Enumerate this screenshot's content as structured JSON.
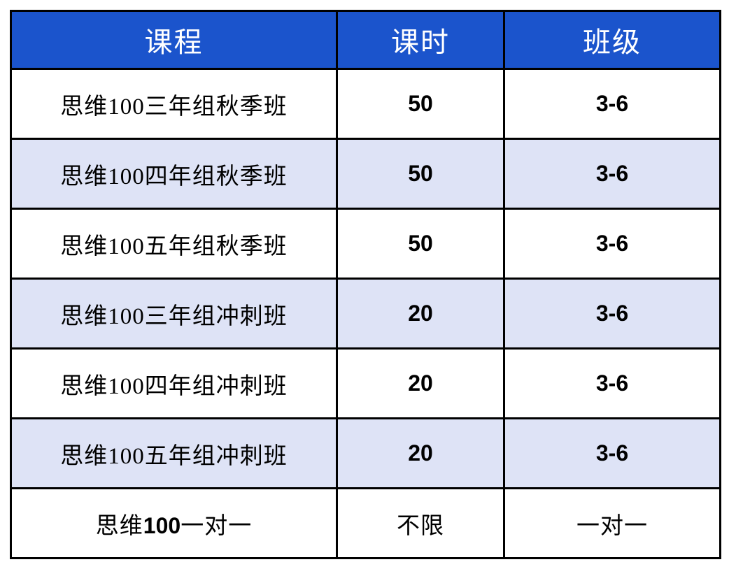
{
  "page": {
    "background": "#ffffff"
  },
  "table": {
    "header": {
      "background": "#1b54cc",
      "text_color": "#ffffff",
      "columns": [
        "课程",
        "课时",
        "班级"
      ]
    },
    "stripe_color": "#dee3f6",
    "border_color": "#000000",
    "rows": [
      {
        "course": [
          {
            "t": "思维100三年组秋季班",
            "num": false
          }
        ],
        "hours": [
          {
            "t": "50",
            "num": true
          }
        ],
        "grade": [
          {
            "t": "3-6",
            "num": true
          }
        ]
      },
      {
        "course": [
          {
            "t": "思维100四年组秋季班",
            "num": false
          }
        ],
        "hours": [
          {
            "t": "50",
            "num": true
          }
        ],
        "grade": [
          {
            "t": "3-6",
            "num": true
          }
        ]
      },
      {
        "course": [
          {
            "t": "思维100五年组秋季班",
            "num": false
          }
        ],
        "hours": [
          {
            "t": "50",
            "num": true
          }
        ],
        "grade": [
          {
            "t": "3-6",
            "num": true
          }
        ]
      },
      {
        "course": [
          {
            "t": "思维100三年组冲刺班",
            "num": false
          }
        ],
        "hours": [
          {
            "t": "20",
            "num": true
          }
        ],
        "grade": [
          {
            "t": "3-6",
            "num": true
          }
        ]
      },
      {
        "course": [
          {
            "t": "思维100四年组冲刺班",
            "num": false
          }
        ],
        "hours": [
          {
            "t": "20",
            "num": true
          }
        ],
        "grade": [
          {
            "t": "3-6",
            "num": true
          }
        ]
      },
      {
        "course": [
          {
            "t": "思维100五年组冲刺班",
            "num": false
          }
        ],
        "hours": [
          {
            "t": "20",
            "num": true
          }
        ],
        "grade": [
          {
            "t": "3-6",
            "num": true
          }
        ]
      },
      {
        "course": [
          {
            "t": "思维",
            "num": false
          },
          {
            "t": "100",
            "num": true
          },
          {
            "t": "一对一",
            "num": false
          }
        ],
        "hours": [
          {
            "t": "不限",
            "num": false
          }
        ],
        "grade": [
          {
            "t": "一对一",
            "num": false
          }
        ]
      }
    ]
  }
}
